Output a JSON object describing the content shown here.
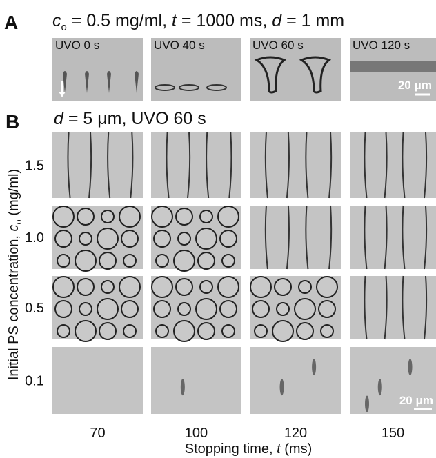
{
  "panel_a": {
    "label": "A",
    "title_parts": [
      "c",
      "o",
      " = 0.5 mg/ml, ",
      "t",
      " = 1000 ms, ",
      "d",
      " = 1 mm"
    ],
    "images": [
      {
        "label": "UVO 0 s"
      },
      {
        "label": "UVO 40 s"
      },
      {
        "label": "UVO 60 s"
      },
      {
        "label": "UVO 120 s"
      }
    ],
    "scale_bar": "20 μm"
  },
  "panel_b": {
    "label": "B",
    "title_parts": [
      "d",
      " = 5 μm, UVO 60 s"
    ],
    "y_axis_label_parts": [
      "Initial PS concentration, ",
      "c",
      "o",
      " (mg/ml)"
    ],
    "rows": [
      "1.5",
      "1.0",
      "0.5",
      "0.1"
    ],
    "columns": [
      "70",
      "100",
      "120",
      "150"
    ],
    "x_axis_label_parts": [
      "Stopping time, ",
      "t",
      " (ms)"
    ],
    "scale_bar": "20 μm"
  }
}
